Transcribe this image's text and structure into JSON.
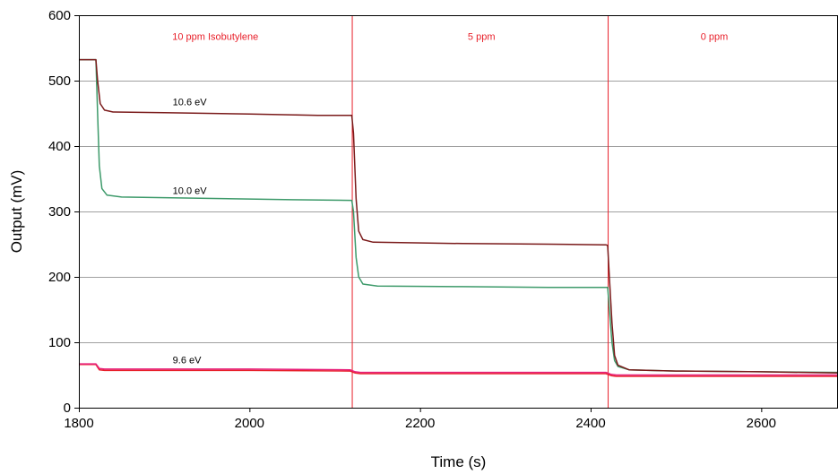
{
  "chart_data": {
    "type": "line",
    "xlabel": "Time (s)",
    "ylabel": "Output (mV)",
    "xlim": [
      1800,
      2690
    ],
    "ylim": [
      0,
      600
    ],
    "xticks": [
      1800,
      2000,
      2200,
      2400,
      2600
    ],
    "yticks": [
      0,
      100,
      200,
      300,
      400,
      500,
      600
    ],
    "grid": "horizontal",
    "region_lines": [
      2120,
      2420
    ],
    "region_color": "#e8202a",
    "region_labels": [
      {
        "text": "10 ppm Isobutylene",
        "x": 1960,
        "y": 562
      },
      {
        "text": "5 ppm",
        "x": 2272,
        "y": 562
      },
      {
        "text": "0 ppm",
        "x": 2545,
        "y": 562
      }
    ],
    "series": [
      {
        "name": "10.6 eV",
        "color": "#7a1a1a",
        "label_at": [
          1910,
          462
        ],
        "points": [
          [
            1800,
            532
          ],
          [
            1820,
            532
          ],
          [
            1820,
            532
          ],
          [
            1822,
            500
          ],
          [
            1825,
            465
          ],
          [
            1830,
            455
          ],
          [
            1840,
            452
          ],
          [
            1900,
            451
          ],
          [
            2000,
            449
          ],
          [
            2080,
            447
          ],
          [
            2118,
            447
          ],
          [
            2120,
            447
          ],
          [
            2122,
            420
          ],
          [
            2125,
            320
          ],
          [
            2128,
            270
          ],
          [
            2133,
            257
          ],
          [
            2145,
            253
          ],
          [
            2250,
            251
          ],
          [
            2350,
            250
          ],
          [
            2415,
            249
          ],
          [
            2418,
            249
          ],
          [
            2420,
            248
          ],
          [
            2422,
            200
          ],
          [
            2425,
            130
          ],
          [
            2428,
            80
          ],
          [
            2432,
            65
          ],
          [
            2445,
            58
          ],
          [
            2500,
            56
          ],
          [
            2600,
            55
          ],
          [
            2690,
            53
          ]
        ]
      },
      {
        "name": "10.0 eV",
        "color": "#3d9a6a",
        "label_at": [
          1910,
          327
        ],
        "points": [
          [
            1800,
            532
          ],
          [
            1820,
            532
          ],
          [
            1820,
            532
          ],
          [
            1822,
            450
          ],
          [
            1824,
            370
          ],
          [
            1827,
            335
          ],
          [
            1833,
            325
          ],
          [
            1850,
            322
          ],
          [
            1950,
            320
          ],
          [
            2050,
            318
          ],
          [
            2118,
            317
          ],
          [
            2120,
            317
          ],
          [
            2122,
            300
          ],
          [
            2125,
            230
          ],
          [
            2128,
            200
          ],
          [
            2133,
            189
          ],
          [
            2150,
            186
          ],
          [
            2250,
            185
          ],
          [
            2350,
            184
          ],
          [
            2418,
            184
          ],
          [
            2420,
            184
          ],
          [
            2422,
            150
          ],
          [
            2425,
            100
          ],
          [
            2428,
            72
          ],
          [
            2432,
            63
          ],
          [
            2445,
            58
          ],
          [
            2500,
            56
          ],
          [
            2600,
            55
          ],
          [
            2690,
            54
          ]
        ]
      },
      {
        "name": "9.6 eV",
        "color": "#e8207a",
        "label_at": [
          1910,
          68
        ],
        "points": [
          [
            1800,
            67
          ],
          [
            1820,
            67
          ],
          [
            1824,
            60
          ],
          [
            1830,
            59
          ],
          [
            1900,
            59
          ],
          [
            2000,
            59
          ],
          [
            2118,
            58
          ],
          [
            2124,
            55
          ],
          [
            2130,
            54
          ],
          [
            2250,
            54
          ],
          [
            2418,
            54
          ],
          [
            2424,
            51
          ],
          [
            2430,
            50
          ],
          [
            2500,
            50
          ],
          [
            2600,
            50
          ],
          [
            2690,
            50
          ]
        ]
      },
      {
        "name": "",
        "color": "#e8202a",
        "points": [
          [
            1800,
            66
          ],
          [
            1820,
            66
          ],
          [
            1824,
            58
          ],
          [
            1830,
            57
          ],
          [
            2000,
            57
          ],
          [
            2118,
            56
          ],
          [
            2124,
            53
          ],
          [
            2130,
            52
          ],
          [
            2300,
            52
          ],
          [
            2418,
            52
          ],
          [
            2424,
            49
          ],
          [
            2430,
            48
          ],
          [
            2600,
            48
          ],
          [
            2690,
            48
          ]
        ]
      }
    ]
  }
}
